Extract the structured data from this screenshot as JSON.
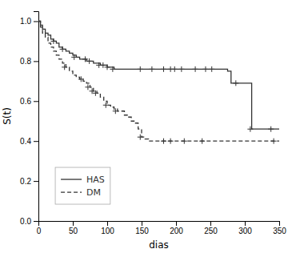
{
  "chart_data": {
    "type": "step",
    "xlabel": "dias",
    "ylabel": "S(t)",
    "xlim": [
      0,
      350
    ],
    "ylim": [
      0.0,
      1.05
    ],
    "xticks": [
      0,
      50,
      100,
      150,
      200,
      250,
      300,
      350
    ],
    "yticks": [
      {
        "value": 0.0,
        "label": "0.0"
      },
      0.2,
      0.4,
      0.6,
      0.8,
      {
        "value": 1.0,
        "label": "1.0"
      }
    ],
    "grid": false,
    "legend": "lower left",
    "series": [
      {
        "name": "HAS",
        "color": "#333333",
        "line_style": "solid",
        "marker": "plus",
        "x": [
          0,
          3,
          6,
          10,
          14,
          18,
          22,
          26,
          30,
          35,
          40,
          45,
          50,
          55,
          60,
          65,
          70,
          75,
          80,
          85,
          90,
          95,
          100,
          105,
          110,
          120,
          125,
          130,
          140,
          150,
          155,
          160,
          165,
          170,
          175,
          180,
          185,
          190,
          195,
          200,
          205,
          210,
          215,
          220,
          225,
          230,
          235,
          240,
          245,
          250,
          255,
          260,
          265,
          270,
          275,
          280,
          290,
          300,
          310,
          320,
          330,
          340,
          350
        ],
        "values": [
          1.0,
          0.98,
          0.96,
          0.94,
          0.93,
          0.91,
          0.9,
          0.89,
          0.87,
          0.86,
          0.85,
          0.84,
          0.83,
          0.82,
          0.81,
          0.81,
          0.8,
          0.8,
          0.79,
          0.79,
          0.78,
          0.78,
          0.77,
          0.77,
          0.76,
          0.76,
          0.76,
          0.76,
          0.76,
          0.76,
          0.76,
          0.76,
          0.76,
          0.76,
          0.76,
          0.76,
          0.76,
          0.76,
          0.76,
          0.76,
          0.76,
          0.76,
          0.76,
          0.76,
          0.76,
          0.76,
          0.76,
          0.76,
          0.76,
          0.76,
          0.76,
          0.76,
          0.76,
          0.76,
          0.75,
          0.69,
          0.69,
          0.69,
          0.46,
          0.46,
          0.46,
          0.46,
          0.46
        ],
        "censor_x": [
          22,
          35,
          52,
          68,
          74,
          88,
          94,
          100,
          108,
          148,
          165,
          182,
          192,
          198,
          208,
          228,
          243,
          252,
          287,
          308,
          338
        ],
        "censor_y": [
          0.9,
          0.86,
          0.82,
          0.81,
          0.8,
          0.78,
          0.78,
          0.77,
          0.76,
          0.76,
          0.76,
          0.76,
          0.76,
          0.76,
          0.76,
          0.76,
          0.76,
          0.76,
          0.69,
          0.46,
          0.46
        ]
      },
      {
        "name": "DM",
        "color": "#333333",
        "line_style": "dashed",
        "marker": "plus",
        "x": [
          0,
          3,
          6,
          10,
          14,
          18,
          22,
          26,
          30,
          35,
          40,
          45,
          50,
          55,
          60,
          65,
          70,
          75,
          80,
          85,
          90,
          95,
          100,
          105,
          110,
          115,
          120,
          125,
          130,
          135,
          140,
          145,
          150,
          155,
          160,
          170,
          180,
          190,
          200,
          210,
          220,
          230,
          240,
          250,
          260,
          270,
          280,
          290,
          300,
          310,
          320,
          330,
          340,
          350
        ],
        "values": [
          1.0,
          0.97,
          0.94,
          0.92,
          0.89,
          0.87,
          0.85,
          0.83,
          0.81,
          0.79,
          0.77,
          0.75,
          0.73,
          0.72,
          0.71,
          0.7,
          0.69,
          0.67,
          0.65,
          0.64,
          0.62,
          0.6,
          0.58,
          0.57,
          0.56,
          0.55,
          0.55,
          0.53,
          0.52,
          0.5,
          0.49,
          0.46,
          0.42,
          0.41,
          0.4,
          0.4,
          0.4,
          0.4,
          0.4,
          0.4,
          0.4,
          0.4,
          0.4,
          0.4,
          0.4,
          0.4,
          0.4,
          0.4,
          0.4,
          0.4,
          0.4,
          0.4,
          0.4,
          0.4
        ],
        "censor_x": [
          38,
          62,
          72,
          78,
          83,
          98,
          112,
          148,
          182,
          192,
          212,
          238,
          342
        ],
        "censor_y": [
          0.77,
          0.71,
          0.67,
          0.65,
          0.64,
          0.58,
          0.55,
          0.42,
          0.4,
          0.4,
          0.4,
          0.4,
          0.4
        ]
      }
    ]
  }
}
